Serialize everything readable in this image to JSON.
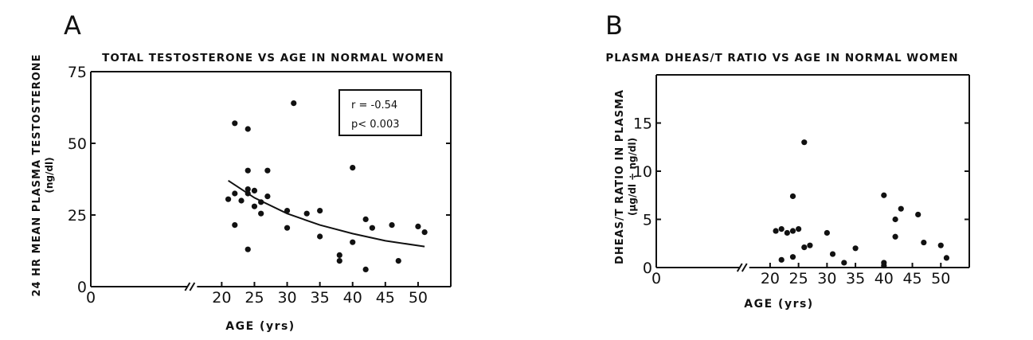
{
  "chart_data": [
    {
      "panel": "A",
      "type": "scatter",
      "title": "TOTAL TESTOSTERONE VS AGE IN NORMAL WOMEN",
      "xlabel": "AGE (yrs)",
      "ylabel": "24 HR MEAN PLASMA TESTOSTERONE",
      "ylabel_unit": "(ng/dl)",
      "xlim": [
        0,
        55
      ],
      "ylim": [
        0,
        75
      ],
      "xticks": [
        0,
        20,
        25,
        30,
        35,
        40,
        45,
        50
      ],
      "yticks": [
        0,
        25,
        50,
        75
      ],
      "annotation": [
        "r = -0.54",
        "p< 0.003"
      ],
      "points": [
        [
          21,
          30.5
        ],
        [
          22,
          57
        ],
        [
          22,
          32.5
        ],
        [
          22,
          21.5
        ],
        [
          23,
          30
        ],
        [
          24,
          55
        ],
        [
          24,
          40.5
        ],
        [
          24,
          34
        ],
        [
          24,
          32.5
        ],
        [
          24,
          13
        ],
        [
          25,
          33.5
        ],
        [
          25,
          28
        ],
        [
          26,
          29.5
        ],
        [
          26,
          25.5
        ],
        [
          27,
          40.5
        ],
        [
          27,
          31.5
        ],
        [
          30,
          26.5
        ],
        [
          30,
          20.5
        ],
        [
          31,
          64
        ],
        [
          33,
          25.5
        ],
        [
          35,
          26.5
        ],
        [
          35,
          17.5
        ],
        [
          38,
          11
        ],
        [
          38,
          9
        ],
        [
          40,
          41.5
        ],
        [
          40,
          15.5
        ],
        [
          42,
          23.5
        ],
        [
          42,
          6
        ],
        [
          43,
          20.5
        ],
        [
          46,
          21.5
        ],
        [
          47,
          9
        ],
        [
          50,
          21
        ],
        [
          51,
          19
        ]
      ],
      "fit_curve": [
        [
          21,
          37
        ],
        [
          25,
          31
        ],
        [
          30,
          25.5
        ],
        [
          35,
          21.5
        ],
        [
          40,
          18.5
        ],
        [
          45,
          16
        ],
        [
          51,
          14
        ]
      ]
    },
    {
      "panel": "B",
      "type": "scatter",
      "title": "PLASMA DHEAS/T RATIO VS AGE IN NORMAL WOMEN",
      "xlabel": "AGE (yrs)",
      "ylabel": "DHEAS/T RATIO IN PLASMA",
      "ylabel_unit": "(µg/dl ÷ ng/dl)",
      "xlim": [
        0,
        55
      ],
      "ylim": [
        0,
        20
      ],
      "xticks": [
        0,
        20,
        25,
        30,
        35,
        40,
        45,
        50
      ],
      "yticks": [
        0,
        5,
        10,
        15
      ],
      "points": [
        [
          21,
          3.8
        ],
        [
          22,
          4
        ],
        [
          22,
          0.8
        ],
        [
          23,
          3.6
        ],
        [
          24,
          7.4
        ],
        [
          24,
          3.8
        ],
        [
          24,
          1.1
        ],
        [
          25,
          4
        ],
        [
          26,
          13
        ],
        [
          26,
          2.1
        ],
        [
          27,
          2.3
        ],
        [
          30,
          3.6
        ],
        [
          31,
          1.4
        ],
        [
          33,
          0.5
        ],
        [
          35,
          2
        ],
        [
          40,
          7.5
        ],
        [
          40,
          0.5
        ],
        [
          40,
          0.2
        ],
        [
          42,
          5
        ],
        [
          42,
          3.2
        ],
        [
          43,
          6.1
        ],
        [
          46,
          5.5
        ],
        [
          47,
          2.6
        ],
        [
          50,
          2.3
        ],
        [
          51,
          1
        ]
      ]
    }
  ]
}
